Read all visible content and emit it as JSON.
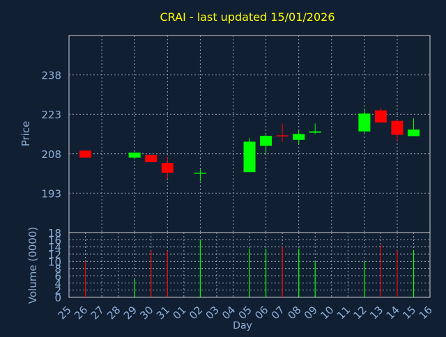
{
  "title": "CRAI - last updated 15/01/2026",
  "colors": {
    "background": "#111f33",
    "plot_border": "#d0d0d0",
    "grid": "#a0a8b4",
    "title": "#ffff00",
    "axis_text": "#8fb0d8",
    "up": "#00ff00",
    "down": "#ff0000"
  },
  "chart_data": [
    {
      "type": "candlestick",
      "ylabel": "Price",
      "ylim": [
        178,
        253
      ],
      "yticks": [
        193,
        208,
        223,
        238
      ],
      "x_labels": [
        "25",
        "26",
        "27",
        "28",
        "29",
        "30",
        "31",
        "01",
        "02",
        "03",
        "04",
        "05",
        "06",
        "07",
        "08",
        "09",
        "10",
        "11",
        "12",
        "13",
        "14",
        "15",
        "16"
      ],
      "candles": [
        {
          "day": "26",
          "open": 209.2,
          "high": 209.2,
          "low": 206.5,
          "close": 206.5
        },
        {
          "day": "29",
          "open": 206.5,
          "high": 208.4,
          "low": 206.0,
          "close": 208.4
        },
        {
          "day": "30",
          "open": 207.5,
          "high": 207.5,
          "low": 204.8,
          "close": 204.8
        },
        {
          "day": "31",
          "open": 204.5,
          "high": 206.8,
          "low": 198.5,
          "close": 200.8
        },
        {
          "day": "02",
          "open": 200.8,
          "high": 202.1,
          "low": 197.5,
          "close": 200.8
        },
        {
          "day": "05",
          "open": 201.0,
          "high": 214.0,
          "low": 201.0,
          "close": 212.6
        },
        {
          "day": "06",
          "open": 211.0,
          "high": 215.2,
          "low": 208.0,
          "close": 214.8
        },
        {
          "day": "07",
          "open": 215.0,
          "high": 219.5,
          "low": 212.5,
          "close": 214.8
        },
        {
          "day": "08",
          "open": 213.3,
          "high": 216.8,
          "low": 211.5,
          "close": 215.5
        },
        {
          "day": "09",
          "open": 216.0,
          "high": 219.5,
          "low": 215.5,
          "close": 216.5
        },
        {
          "day": "12",
          "open": 216.5,
          "high": 225.0,
          "low": 216.0,
          "close": 223.3
        },
        {
          "day": "13",
          "open": 224.5,
          "high": 225.5,
          "low": 219.9,
          "close": 219.9
        },
        {
          "day": "14",
          "open": 220.5,
          "high": 221.0,
          "low": 213.0,
          "close": 215.2
        },
        {
          "day": "15",
          "open": 214.7,
          "high": 221.5,
          "low": 214.7,
          "close": 217.2
        }
      ]
    },
    {
      "type": "bar",
      "ylabel": "Volume (0000)",
      "xlabel": "Day",
      "ylim": [
        0,
        18
      ],
      "yticks": [
        0,
        2,
        4,
        6,
        8,
        10,
        12,
        14,
        16,
        18
      ],
      "x_labels": [
        "25",
        "26",
        "27",
        "28",
        "29",
        "30",
        "31",
        "01",
        "02",
        "03",
        "04",
        "05",
        "06",
        "07",
        "08",
        "09",
        "10",
        "11",
        "12",
        "13",
        "14",
        "15",
        "16"
      ],
      "bars": [
        {
          "day": "26",
          "value": 10,
          "direction": "down"
        },
        {
          "day": "29",
          "value": 5,
          "direction": "up"
        },
        {
          "day": "30",
          "value": 13,
          "direction": "down"
        },
        {
          "day": "31",
          "value": 13,
          "direction": "down"
        },
        {
          "day": "02",
          "value": 16,
          "direction": "up"
        },
        {
          "day": "05",
          "value": 13.5,
          "direction": "up"
        },
        {
          "day": "06",
          "value": 13.5,
          "direction": "up"
        },
        {
          "day": "07",
          "value": 14,
          "direction": "down"
        },
        {
          "day": "08",
          "value": 13.5,
          "direction": "up"
        },
        {
          "day": "09",
          "value": 10,
          "direction": "up"
        },
        {
          "day": "12",
          "value": 10,
          "direction": "up"
        },
        {
          "day": "13",
          "value": 14.5,
          "direction": "down"
        },
        {
          "day": "14",
          "value": 13,
          "direction": "down"
        },
        {
          "day": "15",
          "value": 13,
          "direction": "up"
        }
      ]
    }
  ]
}
